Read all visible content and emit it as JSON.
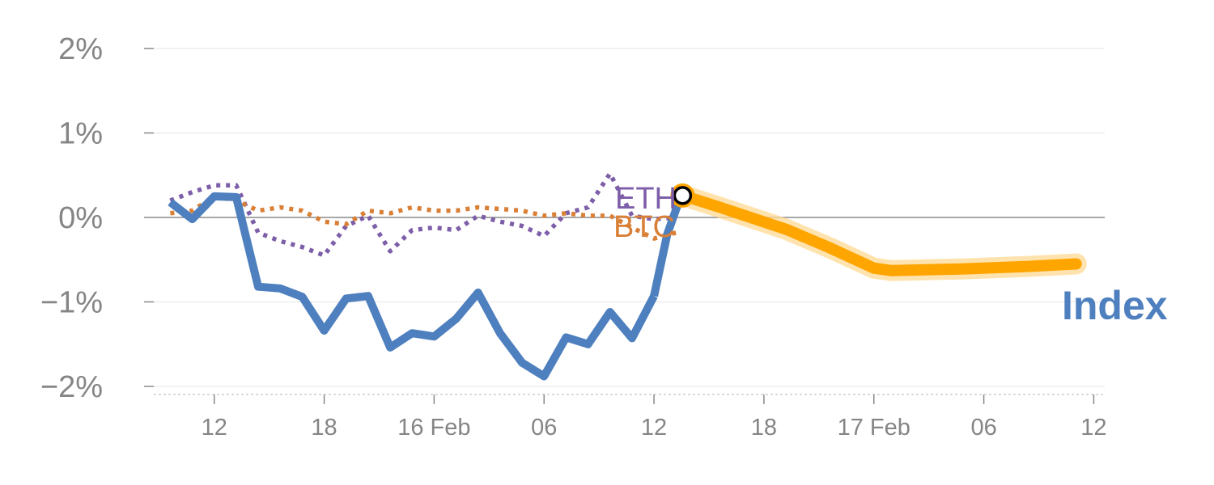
{
  "chart_data": {
    "type": "line",
    "title": "",
    "xlabel": "",
    "ylabel": "",
    "ylim": [
      -2,
      2
    ],
    "xlim": [
      -0.75,
      42.5
    ],
    "yticks": [
      {
        "value": 2,
        "label": "2%"
      },
      {
        "value": 1,
        "label": "1%"
      },
      {
        "value": 0,
        "label": "0%"
      },
      {
        "value": -1,
        "label": "−1%"
      },
      {
        "value": -2,
        "label": "−2%"
      }
    ],
    "xticks": [
      {
        "value": 2,
        "label": "12"
      },
      {
        "value": 7,
        "label": "18"
      },
      {
        "value": 12,
        "label": "16 Feb"
      },
      {
        "value": 17,
        "label": "06"
      },
      {
        "value": 22,
        "label": "12"
      },
      {
        "value": 27,
        "label": "18"
      },
      {
        "value": 32,
        "label": "17 Feb"
      },
      {
        "value": 37,
        "label": "06"
      },
      {
        "value": 42,
        "label": "12"
      }
    ],
    "grid": true,
    "series": [
      {
        "name": "Index",
        "color": "#4e7fbe",
        "style": "solid",
        "x": [
          0,
          1,
          2,
          3,
          4,
          5,
          6,
          7,
          8,
          9,
          10,
          11,
          12,
          13,
          14,
          15,
          16,
          17,
          18,
          19,
          20,
          21,
          22
        ],
        "values": [
          0.18,
          -0.02,
          0.25,
          0.24,
          -0.82,
          -0.84,
          -0.94,
          -1.34,
          -0.96,
          -0.93,
          -1.54,
          -1.37,
          -1.41,
          -1.2,
          -0.89,
          -1.37,
          -1.72,
          -1.88,
          -1.42,
          -1.5,
          -1.12,
          -1.43,
          -0.93
        ]
      },
      {
        "name": "Index",
        "color": "#4e7fbe",
        "style": "solid",
        "x": [
          22,
          22.6,
          23.2
        ],
        "values": [
          -0.93,
          -0.2,
          0.24
        ]
      },
      {
        "name": "ETH",
        "color": "#7d5ea8",
        "style": "dotted",
        "x": [
          0,
          1,
          2,
          3,
          4,
          5,
          6,
          7,
          8,
          9,
          10,
          11,
          12,
          13,
          14,
          15,
          16,
          17,
          18,
          19,
          20,
          21,
          22,
          23
        ],
        "values": [
          0.2,
          0.3,
          0.38,
          0.38,
          -0.18,
          -0.28,
          -0.35,
          -0.45,
          -0.1,
          0.02,
          -0.4,
          -0.15,
          -0.12,
          -0.15,
          0.02,
          -0.05,
          -0.1,
          -0.22,
          0.05,
          0.12,
          0.52,
          0.02,
          -0.02,
          0.0
        ]
      },
      {
        "name": "BTC",
        "color": "#d97f36",
        "style": "dotted",
        "x": [
          0,
          1,
          2,
          3,
          4,
          5,
          6,
          7,
          8,
          9,
          10,
          11,
          12,
          13,
          14,
          15,
          16,
          17,
          18,
          19,
          20,
          21,
          22,
          23
        ],
        "values": [
          0.05,
          0.08,
          0.25,
          0.2,
          0.08,
          0.12,
          0.08,
          -0.05,
          -0.08,
          0.08,
          0.05,
          0.12,
          0.08,
          0.08,
          0.12,
          0.1,
          0.08,
          0.02,
          0.05,
          0.02,
          0.02,
          -0.12,
          -0.25,
          -0.18
        ]
      },
      {
        "name": "Index",
        "color": "#ffa500",
        "style": "forecast",
        "x": [
          23.3,
          25,
          28,
          30,
          32,
          32.8,
          36,
          39,
          41.2
        ],
        "values": [
          0.26,
          0.12,
          -0.14,
          -0.36,
          -0.6,
          -0.63,
          -0.61,
          -0.58,
          -0.55
        ]
      }
    ],
    "labels": {
      "eth": "ETH",
      "btc": "BTC",
      "index": "Index"
    }
  }
}
